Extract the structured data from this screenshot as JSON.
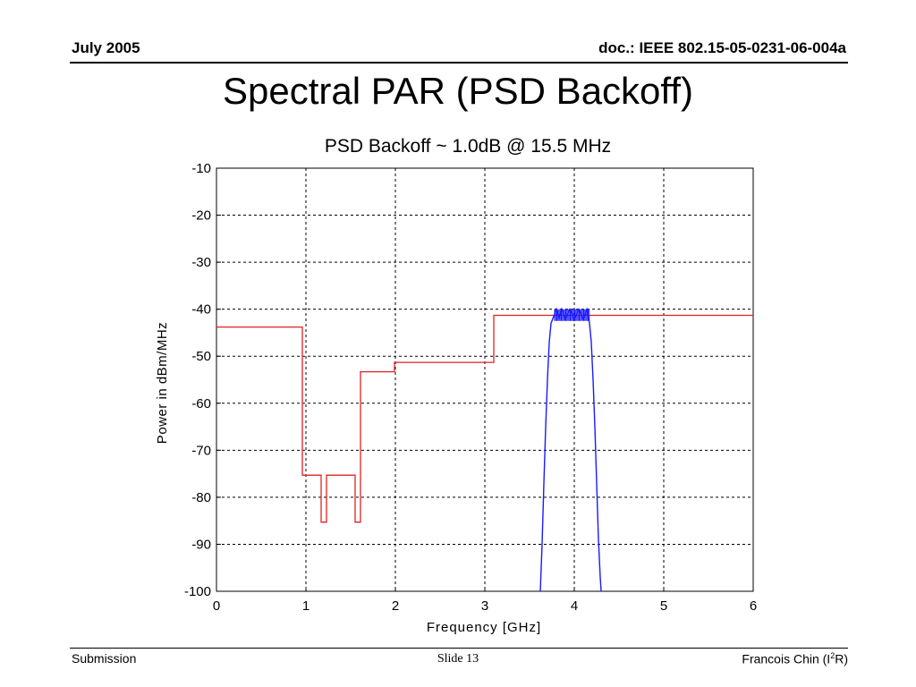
{
  "header": {
    "date": "July 2005",
    "doc_id": "doc.: IEEE 802.15-05-0231-06-004a"
  },
  "slide": {
    "title": "Spectral PAR (PSD Backoff)"
  },
  "footer": {
    "left": "Submission",
    "center": "Slide 13",
    "author_prefix": "Francois Chin (I",
    "author_sup": "2",
    "author_suffix": "R)"
  },
  "colors": {
    "mask": "#dd2222",
    "psd": "#1a1aff",
    "grid": "#000000",
    "background": "#ffffff"
  },
  "chart_data": {
    "type": "line",
    "title": "PSD Backoff ~ 1.0dB @ 15.5 MHz",
    "xlabel": "Frequency [GHz]",
    "ylabel": "Power in dBm/MHz",
    "xlim": [
      0,
      6
    ],
    "ylim": [
      -100,
      -10
    ],
    "xticks": [
      0,
      1,
      2,
      3,
      4,
      5,
      6
    ],
    "yticks": [
      -10,
      -20,
      -30,
      -40,
      -50,
      -60,
      -70,
      -80,
      -90,
      -100
    ],
    "grid": true,
    "series": [
      {
        "color": "#dd2222",
        "kind": "step",
        "x": [
          0,
          0.96,
          0.96,
          1.17,
          1.17,
          1.23,
          1.23,
          1.55,
          1.55,
          1.61,
          1.61,
          1.99,
          1.99,
          2.1,
          3.1,
          3.1,
          6
        ],
        "y": [
          -43.8,
          -43.8,
          -75.3,
          -75.3,
          -85.3,
          -85.3,
          -75.3,
          -75.3,
          -85.3,
          -85.3,
          -53.3,
          -53.3,
          -51.3,
          -51.3,
          -51.3,
          -41.3,
          -41.3
        ]
      },
      {
        "color": "#1a1aff",
        "kind": "line",
        "x": [
          3.62,
          3.64,
          3.66,
          3.68,
          3.7,
          3.72,
          3.74,
          3.76,
          3.78,
          3.8,
          3.83,
          3.86,
          3.9,
          3.95,
          4.0,
          4.05,
          4.1,
          4.14,
          4.17,
          4.19,
          4.21,
          4.23,
          4.25,
          4.27,
          4.29,
          4.3
        ],
        "y": [
          -100,
          -90,
          -77,
          -65,
          -55,
          -47,
          -43,
          -42,
          -41,
          -40,
          -42,
          -40,
          -42,
          -40,
          -42,
          -40,
          -42,
          -40,
          -43,
          -47,
          -55,
          -65,
          -77,
          -89,
          -97,
          -100
        ]
      }
    ]
  }
}
